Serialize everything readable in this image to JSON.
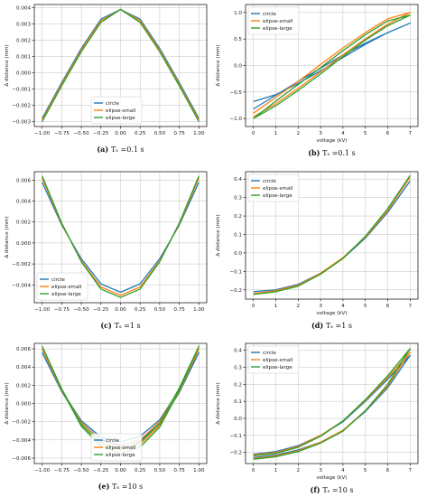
{
  "series_colors": {
    "circle": "#1f77b4",
    "elipse-small": "#ff7f0e",
    "elipse-large": "#2ca02c"
  },
  "chart_data": [
    {
      "type": "line",
      "panel": "a",
      "caption_tag": "(a)",
      "caption_eq": "Tₛ =0.1 s",
      "xlabel": "",
      "ylabel": "Δ distance (mm)",
      "xlim": [
        -1.1,
        1.1
      ],
      "ylim": [
        -0.0033,
        0.0042
      ],
      "xticks": [
        -1.0,
        -0.75,
        -0.5,
        -0.25,
        0.0,
        0.25,
        0.5,
        0.75,
        1.0
      ],
      "xtick_labels": [
        "−1.00",
        "−0.75",
        "−0.50",
        "−0.25",
        "0.00",
        "0.25",
        "0.50",
        "0.75",
        "1.00"
      ],
      "yticks": [
        -0.003,
        -0.002,
        -0.001,
        0.0,
        0.001,
        0.002,
        0.003,
        0.004
      ],
      "ytick_labels": [
        "−0.003",
        "−0.002",
        "−0.001",
        "0.000",
        "0.001",
        "0.002",
        "0.003",
        "0.004"
      ],
      "grid": true,
      "legend_position": "lower-center",
      "series": [
        {
          "name": "circle",
          "x": [
            -1.0,
            -0.75,
            -0.5,
            -0.25,
            0.0,
            0.25,
            0.5,
            0.75,
            1.0
          ],
          "y": [
            -0.0028,
            -0.0006,
            0.0015,
            0.0033,
            0.0039,
            0.0033,
            0.0015,
            -0.0006,
            -0.0028
          ]
        },
        {
          "name": "elipse-small",
          "x": [
            -1.0,
            -0.75,
            -0.5,
            -0.25,
            0.0,
            0.25,
            0.5,
            0.75,
            1.0
          ],
          "y": [
            -0.0029,
            -0.0007,
            0.0014,
            0.0032,
            0.0039,
            0.0032,
            0.0014,
            -0.0007,
            -0.0029
          ]
        },
        {
          "name": "elipse-large",
          "x": [
            -1.0,
            -0.75,
            -0.5,
            -0.25,
            0.0,
            0.25,
            0.5,
            0.75,
            1.0
          ],
          "y": [
            -0.003,
            -0.0008,
            0.0013,
            0.0031,
            0.0039,
            0.0031,
            0.0013,
            -0.0008,
            -0.003
          ]
        }
      ]
    },
    {
      "type": "line",
      "panel": "b",
      "caption_tag": "(b)",
      "caption_eq": "Tₛ =0.1 s",
      "xlabel": "voltage (kV)",
      "ylabel": "Δ distance (mm)",
      "xlim": [
        -0.35,
        7.35
      ],
      "ylim": [
        -1.15,
        1.15
      ],
      "xticks": [
        0,
        1,
        2,
        3,
        4,
        5,
        6,
        7
      ],
      "xtick_labels": [
        "0",
        "1",
        "2",
        "3",
        "4",
        "5",
        "6",
        "7"
      ],
      "yticks": [
        -1.0,
        -0.5,
        0.0,
        0.5,
        1.0
      ],
      "ytick_labels": [
        "−1.0",
        "−0.5",
        "0.0",
        "0.5",
        "1.0"
      ],
      "grid": true,
      "legend_position": "top-left",
      "series": [
        {
          "name": "circle",
          "x": [
            0,
            1,
            2,
            3,
            4,
            5,
            6,
            7,
            6,
            5,
            4,
            3,
            2,
            1,
            0
          ],
          "y": [
            -0.82,
            -0.56,
            -0.3,
            -0.05,
            0.2,
            0.42,
            0.62,
            0.8,
            0.62,
            0.4,
            0.15,
            -0.1,
            -0.34,
            -0.55,
            -0.68
          ]
        },
        {
          "name": "elipse-small",
          "x": [
            0,
            1,
            2,
            3,
            4,
            5,
            6,
            7,
            6,
            5,
            4,
            3,
            2,
            1,
            0
          ],
          "y": [
            -0.97,
            -0.72,
            -0.43,
            -0.12,
            0.2,
            0.5,
            0.78,
            1.0,
            0.88,
            0.62,
            0.33,
            0.02,
            -0.3,
            -0.6,
            -0.9
          ]
        },
        {
          "name": "elipse-large",
          "x": [
            0,
            1,
            2,
            3,
            4,
            5,
            6,
            7,
            6,
            5,
            4,
            3,
            2,
            1,
            0
          ],
          "y": [
            -1.0,
            -0.76,
            -0.47,
            -0.16,
            0.17,
            0.48,
            0.75,
            0.95,
            0.84,
            0.58,
            0.28,
            -0.04,
            -0.36,
            -0.67,
            -1.0
          ]
        }
      ]
    },
    {
      "type": "line",
      "panel": "c",
      "caption_tag": "(c)",
      "caption_eq": "Tₛ =1 s",
      "xlabel": "",
      "ylabel": "Δ distance (mm)",
      "xlim": [
        -1.1,
        1.1
      ],
      "ylim": [
        -0.0057,
        0.0068
      ],
      "xticks": [
        -1.0,
        -0.75,
        -0.5,
        -0.25,
        0.0,
        0.25,
        0.5,
        0.75,
        1.0
      ],
      "xtick_labels": [
        "−1.00",
        "−0.75",
        "−0.50",
        "−0.25",
        "0.00",
        "0.25",
        "0.50",
        "0.75",
        "1.00"
      ],
      "yticks": [
        -0.004,
        -0.002,
        0.0,
        0.002,
        0.004,
        0.006
      ],
      "ytick_labels": [
        "−0.004",
        "−0.002",
        "0.000",
        "0.002",
        "0.004",
        "0.006"
      ],
      "grid": true,
      "legend_position": "lower-left",
      "series": [
        {
          "name": "circle",
          "x": [
            -1.0,
            -0.75,
            -0.5,
            -0.25,
            0.0,
            0.25,
            0.5,
            0.75,
            1.0
          ],
          "y": [
            0.0058,
            0.0017,
            -0.0015,
            -0.0039,
            -0.0047,
            -0.0039,
            -0.0015,
            0.0017,
            0.0058
          ]
        },
        {
          "name": "elipse-small",
          "x": [
            -1.0,
            -0.75,
            -0.5,
            -0.25,
            0.0,
            0.25,
            0.5,
            0.75,
            1.0
          ],
          "y": [
            0.0062,
            0.0018,
            -0.0017,
            -0.0042,
            -0.005,
            -0.0042,
            -0.0017,
            0.0018,
            0.0062
          ]
        },
        {
          "name": "elipse-large",
          "x": [
            -1.0,
            -0.75,
            -0.5,
            -0.25,
            0.0,
            0.25,
            0.5,
            0.75,
            1.0
          ],
          "y": [
            0.0064,
            0.0019,
            -0.0018,
            -0.0044,
            -0.0052,
            -0.0044,
            -0.0018,
            0.0019,
            0.0064
          ]
        }
      ]
    },
    {
      "type": "line",
      "panel": "d",
      "caption_tag": "(d)",
      "caption_eq": "Tₛ =1 s",
      "xlabel": "voltage (kV)",
      "ylabel": "Δ distance (mm)",
      "xlim": [
        -0.35,
        7.35
      ],
      "ylim": [
        -0.25,
        0.44
      ],
      "xticks": [
        0,
        1,
        2,
        3,
        4,
        5,
        6,
        7
      ],
      "xtick_labels": [
        "0",
        "1",
        "2",
        "3",
        "4",
        "5",
        "6",
        "7"
      ],
      "yticks": [
        -0.2,
        -0.1,
        0.0,
        0.1,
        0.2,
        0.3,
        0.4
      ],
      "ytick_labels": [
        "−0.2",
        "−0.1",
        "0.0",
        "0.1",
        "0.2",
        "0.3",
        "0.4"
      ],
      "grid": true,
      "legend_position": "top-left",
      "series": [
        {
          "name": "circle",
          "x": [
            0,
            1,
            2,
            3,
            4,
            5,
            6,
            7
          ],
          "y": [
            -0.21,
            -0.2,
            -0.17,
            -0.11,
            -0.03,
            0.08,
            0.22,
            0.39
          ]
        },
        {
          "name": "elipse-small",
          "x": [
            0,
            1,
            2,
            3,
            4,
            5,
            6,
            7
          ],
          "y": [
            -0.22,
            -0.205,
            -0.175,
            -0.11,
            -0.025,
            0.085,
            0.23,
            0.41
          ]
        },
        {
          "name": "elipse-large",
          "x": [
            0,
            1,
            2,
            3,
            4,
            5,
            6,
            7
          ],
          "y": [
            -0.225,
            -0.21,
            -0.18,
            -0.115,
            -0.03,
            0.09,
            0.24,
            0.42
          ]
        }
      ]
    },
    {
      "type": "line",
      "panel": "e",
      "caption_tag": "(e)",
      "caption_eq": "Tₛ =10 s",
      "xlabel": "",
      "ylabel": "Δ distance (mm)",
      "xlim": [
        -1.1,
        1.1
      ],
      "ylim": [
        -0.0066,
        0.0066
      ],
      "xticks": [
        -1.0,
        -0.75,
        -0.5,
        -0.25,
        0.0,
        0.25,
        0.5,
        0.75,
        1.0
      ],
      "xtick_labels": [
        "−1.00",
        "−0.75",
        "−0.50",
        "−0.25",
        "0.00",
        "0.25",
        "0.50",
        "0.75",
        "1.00"
      ],
      "yticks": [
        -0.006,
        -0.004,
        -0.002,
        0.0,
        0.002,
        0.004,
        0.006
      ],
      "ytick_labels": [
        "−0.006",
        "−0.004",
        "−0.002",
        "0.000",
        "0.002",
        "0.004",
        "0.006"
      ],
      "grid": true,
      "legend_position": "lower-center",
      "series": [
        {
          "name": "circle",
          "x": [
            -1.0,
            -0.75,
            -0.5,
            -0.25,
            0.0,
            0.25,
            0.5,
            0.75,
            1.0,
            0.75,
            0.5,
            0.25,
            0.0,
            -0.25,
            -0.5,
            -0.75,
            -1.0
          ],
          "y": [
            0.0056,
            0.0013,
            -0.0021,
            -0.004,
            -0.0046,
            -0.0041,
            -0.0022,
            0.0012,
            0.0056,
            0.0015,
            -0.0018,
            -0.0036,
            -0.0042,
            -0.0037,
            -0.0019,
            0.0014,
            0.0056
          ]
        },
        {
          "name": "elipse-small",
          "x": [
            -1.0,
            -0.75,
            -0.5,
            -0.25,
            0.0,
            0.25,
            0.5,
            0.75,
            1.0,
            0.75,
            0.5,
            0.25,
            0.0,
            -0.25,
            -0.5,
            -0.75,
            -1.0
          ],
          "y": [
            0.006,
            0.0014,
            -0.0023,
            -0.0044,
            -0.0051,
            -0.0045,
            -0.0024,
            0.0013,
            0.006,
            0.0016,
            -0.002,
            -0.004,
            -0.0047,
            -0.0041,
            -0.0021,
            0.0015,
            0.006
          ]
        },
        {
          "name": "elipse-large",
          "x": [
            -1.0,
            -0.75,
            -0.5,
            -0.25,
            0.0,
            0.25,
            0.5,
            0.75,
            1.0,
            0.75,
            0.5,
            0.25,
            0.0,
            -0.25,
            -0.5,
            -0.75,
            -1.0
          ],
          "y": [
            0.0063,
            0.0015,
            -0.0025,
            -0.0047,
            -0.0055,
            -0.0048,
            -0.0026,
            0.0014,
            0.0063,
            0.0017,
            -0.0022,
            -0.0043,
            -0.005,
            -0.0044,
            -0.0023,
            0.0016,
            0.0063
          ]
        }
      ]
    },
    {
      "type": "line",
      "panel": "f",
      "caption_tag": "(f)",
      "caption_eq": "Tₛ =10 s",
      "xlabel": "voltage (kV)",
      "ylabel": "Δ distance (mm)",
      "xlim": [
        -0.35,
        7.35
      ],
      "ylim": [
        -0.265,
        0.44
      ],
      "xticks": [
        0,
        1,
        2,
        3,
        4,
        5,
        6,
        7
      ],
      "xtick_labels": [
        "0",
        "1",
        "2",
        "3",
        "4",
        "5",
        "6",
        "7"
      ],
      "yticks": [
        -0.2,
        -0.1,
        0.0,
        0.1,
        0.2,
        0.3,
        0.4
      ],
      "ytick_labels": [
        "−0.2",
        "−0.1",
        "0.0",
        "0.1",
        "0.2",
        "0.3",
        "0.4"
      ],
      "grid": true,
      "legend_position": "top-left",
      "series": [
        {
          "name": "circle",
          "x": [
            0,
            1,
            2,
            3,
            4,
            5,
            6,
            7,
            6,
            5,
            4,
            3,
            2,
            1,
            0
          ],
          "y": [
            -0.23,
            -0.215,
            -0.185,
            -0.14,
            -0.07,
            0.04,
            0.18,
            0.37,
            0.23,
            0.1,
            -0.02,
            -0.1,
            -0.16,
            -0.195,
            -0.21
          ]
        },
        {
          "name": "elipse-small",
          "x": [
            0,
            1,
            2,
            3,
            4,
            5,
            6,
            7,
            6,
            5,
            4,
            3,
            2,
            1,
            0
          ],
          "y": [
            -0.235,
            -0.22,
            -0.19,
            -0.14,
            -0.07,
            0.045,
            0.19,
            0.39,
            0.24,
            0.105,
            -0.015,
            -0.1,
            -0.165,
            -0.2,
            -0.215
          ]
        },
        {
          "name": "elipse-large",
          "x": [
            0,
            1,
            2,
            3,
            4,
            5,
            6,
            7,
            6,
            5,
            4,
            3,
            2,
            1,
            0
          ],
          "y": [
            -0.24,
            -0.225,
            -0.195,
            -0.145,
            -0.075,
            0.045,
            0.2,
            0.41,
            0.25,
            0.11,
            -0.015,
            -0.105,
            -0.17,
            -0.205,
            -0.22
          ]
        }
      ]
    }
  ]
}
